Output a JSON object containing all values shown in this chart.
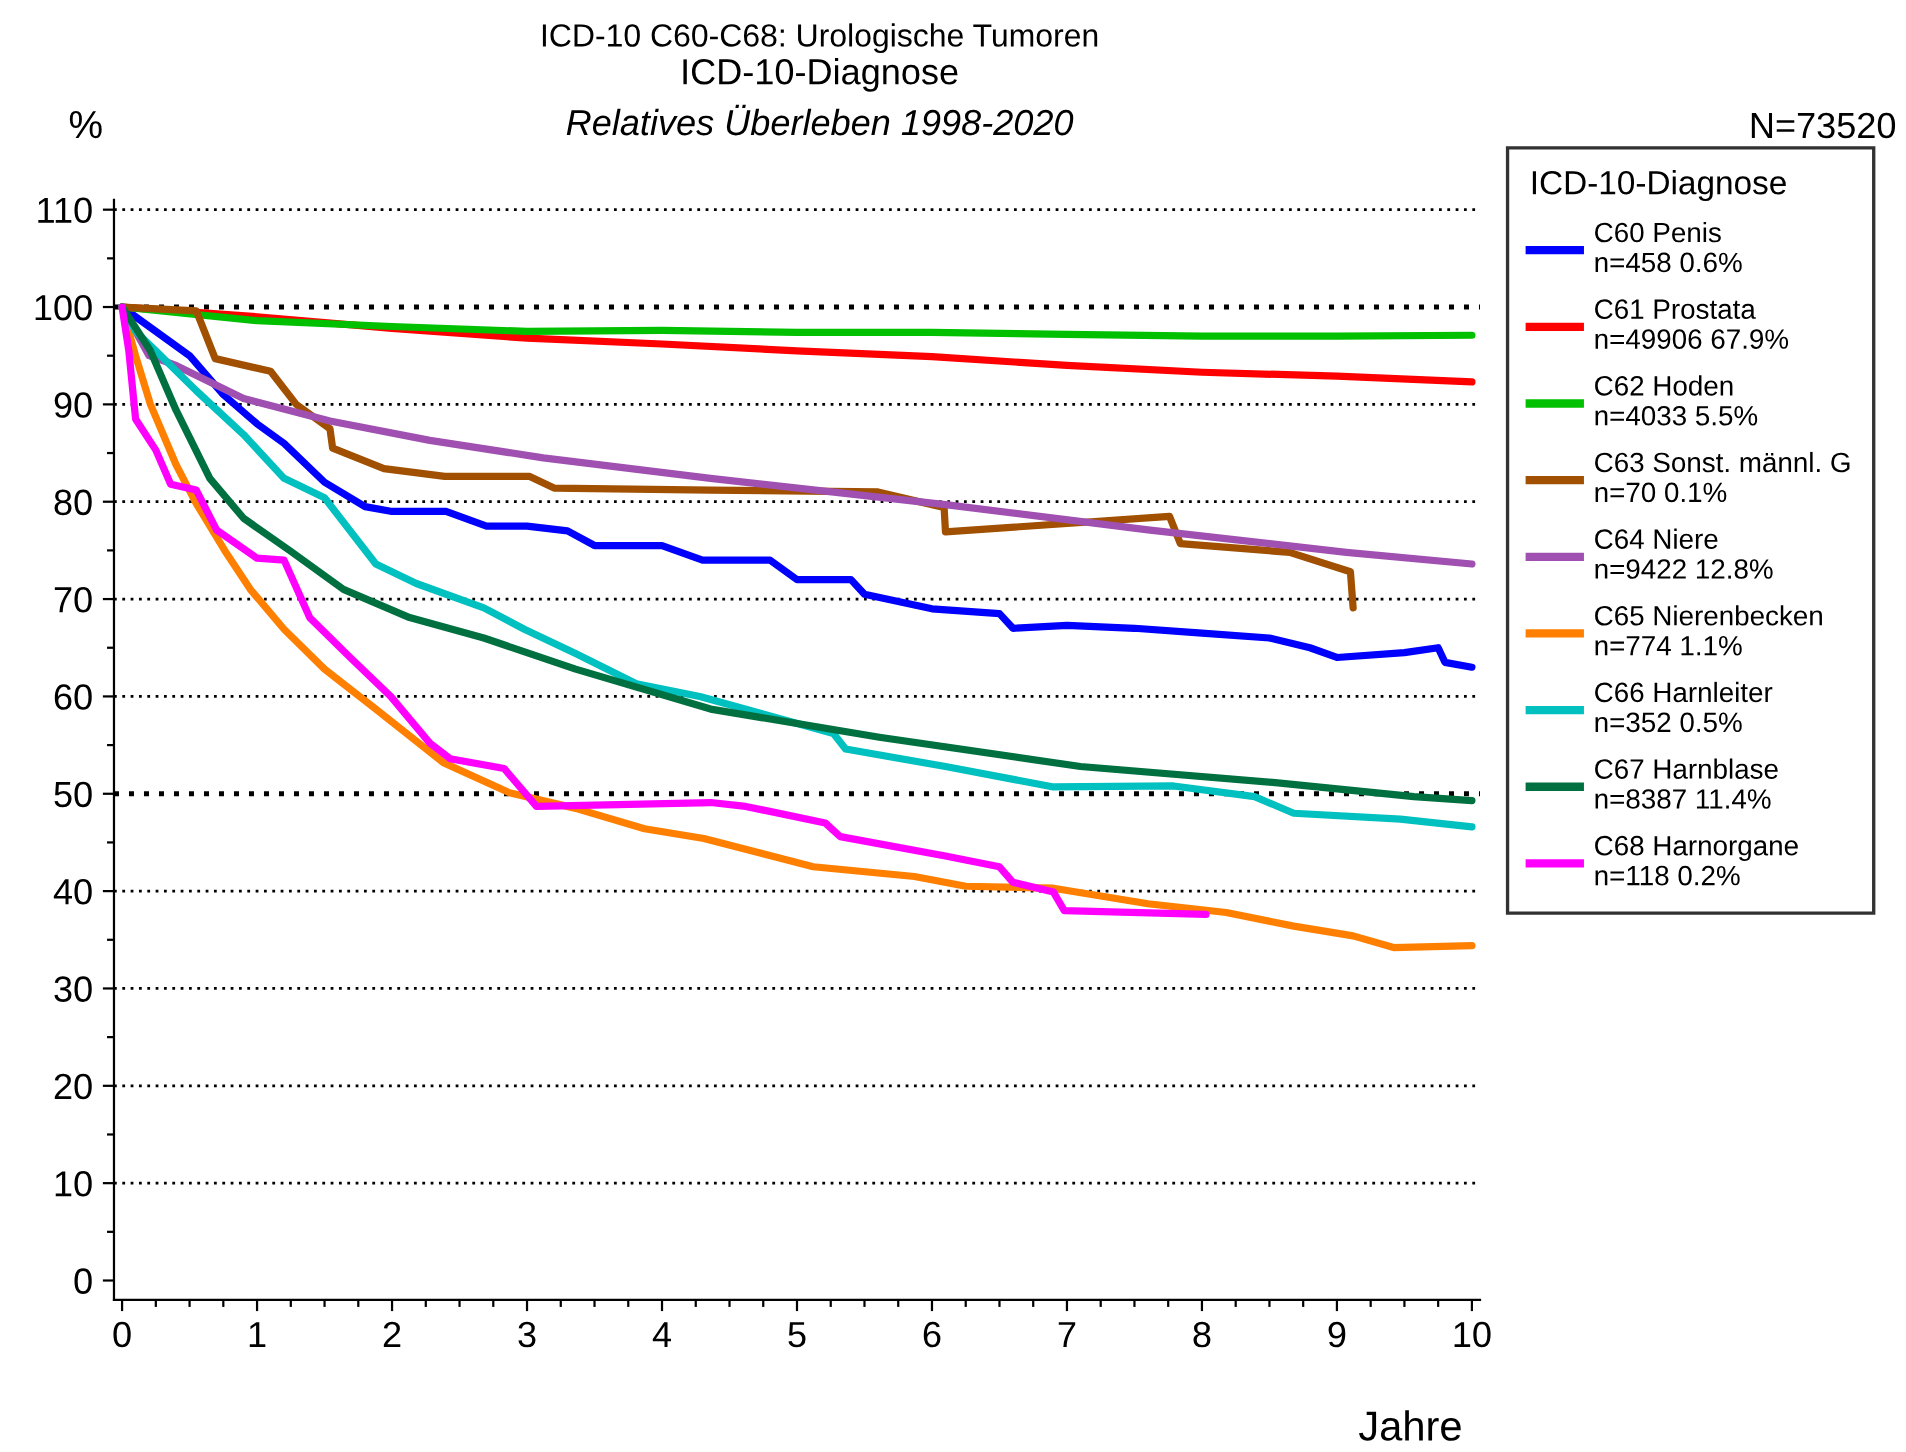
{
  "chart_data": {
    "type": "line",
    "title": "ICD-10 C60-C68: Urologische Tumoren",
    "subtitle": "ICD-10-Diagnose",
    "annotations": [
      "Relatives Überleben 1998-2020",
      "N=73520"
    ],
    "xlabel": "Jahre",
    "ylabel": "%",
    "legend_title": "ICD-10-Diagnose",
    "legend": "right",
    "xlim": [
      -0.06,
      10.06
    ],
    "ylim": [
      -2,
      111
    ],
    "xticks": [
      0,
      {
        "value": 0.25,
        "label": null
      },
      {
        "value": 0.5,
        "label": null
      },
      {
        "value": 0.75,
        "label": null
      },
      1,
      {
        "value": 1.25,
        "label": null
      },
      {
        "value": 1.5,
        "label": null
      },
      {
        "value": 1.75,
        "label": null
      },
      2,
      {
        "value": 2.25,
        "label": null
      },
      {
        "value": 2.5,
        "label": null
      },
      {
        "value": 2.75,
        "label": null
      },
      3,
      {
        "value": 3.25,
        "label": null
      },
      {
        "value": 3.5,
        "label": null
      },
      {
        "value": 3.75,
        "label": null
      },
      4,
      {
        "value": 4.25,
        "label": null
      },
      {
        "value": 4.5,
        "label": null
      },
      {
        "value": 4.75,
        "label": null
      },
      5,
      {
        "value": 5.25,
        "label": null
      },
      {
        "value": 5.5,
        "label": null
      },
      {
        "value": 5.75,
        "label": null
      },
      6,
      {
        "value": 6.25,
        "label": null
      },
      {
        "value": 6.5,
        "label": null
      },
      {
        "value": 6.75,
        "label": null
      },
      7,
      {
        "value": 7.25,
        "label": null
      },
      {
        "value": 7.5,
        "label": null
      },
      {
        "value": 7.75,
        "label": null
      },
      8,
      {
        "value": 8.25,
        "label": null
      },
      {
        "value": 8.5,
        "label": null
      },
      {
        "value": 8.75,
        "label": null
      },
      9,
      {
        "value": 9.25,
        "label": null
      },
      {
        "value": 9.5,
        "label": null
      },
      {
        "value": 9.75,
        "label": null
      },
      10
    ],
    "yticks": [
      0,
      {
        "value": 5,
        "label": null
      },
      10,
      {
        "value": 15,
        "label": null
      },
      20,
      {
        "value": 25,
        "label": null
      },
      30,
      {
        "value": 35,
        "label": null
      },
      40,
      {
        "value": 45,
        "label": null
      },
      50,
      {
        "value": 55,
        "label": null
      },
      60,
      {
        "value": 65,
        "label": null
      },
      70,
      {
        "value": 75,
        "label": null
      },
      80,
      {
        "value": 85,
        "label": null
      },
      90,
      {
        "value": 95,
        "label": null
      },
      100,
      {
        "value": 105,
        "label": null
      },
      110
    ],
    "grid": "y",
    "marker": "none",
    "line_style": "solid",
    "series": [
      {
        "name": "C60 Penis\nn=458 0.6%",
        "color": "#0000ff",
        "x": [
          0,
          0.3,
          0.5,
          0.75,
          1,
          1.2,
          1.5,
          1.8,
          2,
          2.4,
          2.7,
          3,
          3.3,
          3.5,
          4,
          4.3,
          4.8,
          5,
          5.4,
          5.5,
          6,
          6.5,
          6.6,
          7,
          7.5,
          8,
          8.5,
          8.8,
          9,
          9.5,
          9.75,
          9.8,
          10
        ],
        "values": [
          100,
          97,
          95,
          91,
          88,
          86,
          82,
          79.5,
          79,
          79,
          77.5,
          77.5,
          77,
          75.5,
          75.5,
          74,
          74,
          72,
          72,
          70.5,
          69,
          68.5,
          67,
          67.3,
          67,
          66.5,
          66,
          65,
          64,
          64.5,
          65,
          63.5,
          63
        ]
      },
      {
        "name": "C61 Prostata\nn=49906 67.9%",
        "color": "#ff0000",
        "x": [
          0,
          1,
          2,
          3,
          4,
          5,
          6,
          7,
          8,
          9,
          10
        ],
        "values": [
          100,
          99,
          97.8,
          96.8,
          96.2,
          95.5,
          94.9,
          94,
          93.3,
          92.9,
          92.3
        ]
      },
      {
        "name": "C62 Hoden\nn=4033 5.5%",
        "color": "#00c000",
        "x": [
          0,
          1,
          2,
          3,
          4,
          5,
          6,
          7,
          8,
          9,
          10
        ],
        "values": [
          100,
          98.6,
          98,
          97.5,
          97.6,
          97.4,
          97.4,
          97.2,
          97,
          97,
          97.1
        ]
      },
      {
        "name": "C63 Sonst. männl. G\nn=70 0.1%",
        "color": "#a05000",
        "x": [
          0,
          0.55,
          0.69,
          1.1,
          1.29,
          1.54,
          1.56,
          1.94,
          2.39,
          3.02,
          3.2,
          4.36,
          5.6,
          6.09,
          6.1,
          7.76,
          7.84,
          8.65,
          9.1,
          9.12
        ],
        "values": [
          100,
          99.6,
          94.7,
          93.4,
          90,
          87.5,
          85.5,
          83.4,
          82.6,
          82.6,
          81.4,
          81.2,
          81,
          79.4,
          76.9,
          78.5,
          75.7,
          74.8,
          72.8,
          69.1
        ]
      },
      {
        "name": "C64 Niere\nn=9422 12.8%",
        "color": "#a050b0",
        "x": [
          0,
          0.2,
          0.4,
          0.9,
          1.54,
          2.28,
          3.12,
          4.36,
          6.1,
          7.6,
          9.07,
          10
        ],
        "values": [
          100,
          95,
          94,
          90.6,
          88.3,
          86.3,
          84.5,
          82.4,
          79.7,
          77.1,
          74.8,
          73.6
        ]
      },
      {
        "name": "C65 Nierenbecken\nn=774 1.1%",
        "color": "#ff8000",
        "x": [
          0,
          0.1,
          0.21,
          0.4,
          0.55,
          0.76,
          0.95,
          1.2,
          1.5,
          1.88,
          2.38,
          2.87,
          3.36,
          3.87,
          4.31,
          5.12,
          5.87,
          6.25,
          6.9,
          7.6,
          8.18,
          8.68,
          9.12,
          9.42,
          10
        ],
        "values": [
          100,
          95,
          90,
          83.8,
          79.8,
          75,
          71,
          66.9,
          62.8,
          58.7,
          53.2,
          50.1,
          48.5,
          46.4,
          45.4,
          42.5,
          41.5,
          40.5,
          40.3,
          38.7,
          37.8,
          36.4,
          35.4,
          34.2,
          34.4
        ]
      },
      {
        "name": "C66 Harnleiter\nn=352 0.5%",
        "color": "#00c0c0",
        "x": [
          0,
          0.1,
          0.25,
          0.55,
          0.9,
          1.2,
          1.5,
          1.88,
          2.18,
          2.68,
          2.98,
          3.36,
          3.81,
          4.28,
          5.27,
          5.36,
          6.1,
          6.9,
          7.79,
          8.39,
          8.68,
          9.47,
          10
        ],
        "values": [
          100,
          97.5,
          95.5,
          91.4,
          86.9,
          82.4,
          80.4,
          73.6,
          71.6,
          69.1,
          66.9,
          64.4,
          61.3,
          60,
          56.2,
          54.6,
          52.8,
          50.7,
          50.8,
          49.7,
          48,
          47.4,
          46.6
        ]
      },
      {
        "name": "C67 Harnblase\nn=8387 11.4%",
        "color": "#007040",
        "x": [
          0,
          0.21,
          0.4,
          0.65,
          0.9,
          1.24,
          1.64,
          2.13,
          2.68,
          3.36,
          4.36,
          5.61,
          7.1,
          8.58,
          9.57,
          10
        ],
        "values": [
          100,
          95.5,
          89.4,
          82.4,
          78.3,
          75,
          71,
          68.1,
          66,
          62.8,
          58.7,
          55.8,
          52.8,
          51.1,
          49.7,
          49.3
        ]
      },
      {
        "name": "C68 Harnorgane\nn=118 0.2%",
        "color": "#ff00ff",
        "x": [
          0,
          0.05,
          0.1,
          0.25,
          0.36,
          0.55,
          0.7,
          1.0,
          1.2,
          1.39,
          1.69,
          1.99,
          2.28,
          2.43,
          2.83,
          3.07,
          4.36,
          4.62,
          5.21,
          5.32,
          6.1,
          6.5,
          6.6,
          6.9,
          6.98,
          8.03
        ],
        "values": [
          100,
          95.5,
          88.5,
          85.3,
          81.8,
          81.2,
          77.1,
          74.2,
          74,
          68.1,
          64,
          60,
          55.2,
          53.6,
          52.6,
          48.7,
          49.1,
          48.7,
          47,
          45.6,
          43.6,
          42.5,
          40.9,
          39.9,
          38,
          37.6
        ]
      }
    ]
  }
}
